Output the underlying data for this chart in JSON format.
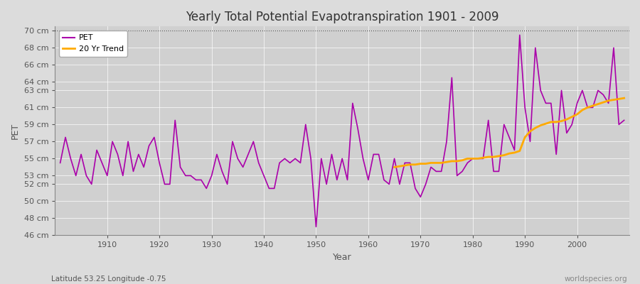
{
  "title": "Yearly Total Potential Evapotranspiration 1901 - 2009",
  "xlabel": "Year",
  "ylabel": "PET",
  "subtitle": "Latitude 53.25 Longitude -0.75",
  "watermark": "worldspecies.org",
  "ylim": [
    46,
    70.5
  ],
  "ytick_labels": [
    "46 cm",
    "48 cm",
    "50 cm",
    "52 cm",
    "53 cm",
    "55 cm",
    "57 cm",
    "59 cm",
    "61 cm",
    "63 cm",
    "64 cm",
    "66 cm",
    "68 cm",
    "70 cm"
  ],
  "ytick_values": [
    46,
    48,
    50,
    52,
    53,
    55,
    57,
    59,
    61,
    63,
    64,
    66,
    68,
    70
  ],
  "pet_color": "#aa00aa",
  "trend_color": "#ffaa00",
  "bg_color": "#dcdcdc",
  "plot_bg_color": "#d0d0d0",
  "years": [
    1901,
    1902,
    1903,
    1904,
    1905,
    1906,
    1907,
    1908,
    1909,
    1910,
    1911,
    1912,
    1913,
    1914,
    1915,
    1916,
    1917,
    1918,
    1919,
    1920,
    1921,
    1922,
    1923,
    1924,
    1925,
    1926,
    1927,
    1928,
    1929,
    1930,
    1931,
    1932,
    1933,
    1934,
    1935,
    1936,
    1937,
    1938,
    1939,
    1940,
    1941,
    1942,
    1943,
    1944,
    1945,
    1946,
    1947,
    1948,
    1949,
    1950,
    1951,
    1952,
    1953,
    1954,
    1955,
    1956,
    1957,
    1958,
    1959,
    1960,
    1961,
    1962,
    1963,
    1964,
    1965,
    1966,
    1967,
    1968,
    1969,
    1970,
    1971,
    1972,
    1973,
    1974,
    1975,
    1976,
    1977,
    1978,
    1979,
    1980,
    1981,
    1982,
    1983,
    1984,
    1985,
    1986,
    1987,
    1988,
    1989,
    1990,
    1991,
    1992,
    1993,
    1994,
    1995,
    1996,
    1997,
    1998,
    1999,
    2000,
    2001,
    2002,
    2003,
    2004,
    2005,
    2006,
    2007,
    2008,
    2009
  ],
  "pet_values": [
    54.5,
    57.5,
    55.0,
    53.0,
    55.5,
    53.0,
    52.0,
    56.0,
    54.5,
    53.0,
    57.0,
    55.5,
    53.0,
    57.0,
    53.5,
    55.5,
    54.0,
    56.5,
    57.5,
    54.5,
    52.0,
    52.0,
    59.5,
    54.0,
    53.0,
    53.0,
    52.5,
    52.5,
    51.5,
    53.0,
    55.5,
    53.5,
    52.0,
    57.0,
    55.0,
    54.0,
    55.5,
    57.0,
    54.5,
    53.0,
    51.5,
    51.5,
    54.5,
    55.0,
    54.5,
    55.0,
    54.5,
    59.0,
    55.0,
    47.0,
    55.0,
    52.0,
    55.5,
    52.5,
    55.0,
    52.5,
    61.5,
    58.5,
    55.0,
    52.5,
    55.5,
    55.5,
    52.5,
    52.0,
    55.0,
    52.0,
    54.5,
    54.5,
    51.5,
    50.5,
    52.0,
    54.0,
    53.5,
    53.5,
    57.0,
    64.5,
    53.0,
    53.5,
    54.5,
    55.0,
    55.0,
    55.0,
    59.5,
    53.5,
    53.5,
    59.0,
    57.5,
    56.0,
    69.5,
    61.0,
    57.0,
    68.0,
    63.0,
    61.5,
    61.5,
    55.5,
    63.0,
    58.0,
    59.0,
    61.5,
    63.0,
    61.0,
    61.0,
    63.0,
    62.5,
    61.5,
    68.0,
    59.0,
    59.5
  ],
  "trend_years": [
    1965,
    1966,
    1967,
    1968,
    1969,
    1970,
    1971,
    1972,
    1973,
    1974,
    1975,
    1976,
    1977,
    1978,
    1979,
    1980,
    1981,
    1982,
    1983,
    1984,
    1985,
    1986,
    1987,
    1988,
    1989,
    1990,
    1991,
    1992,
    1993,
    1994,
    1995,
    1996,
    1997,
    1998,
    1999,
    2000,
    2001,
    2002,
    2003,
    2004,
    2005,
    2006,
    2007,
    2008,
    2009
  ],
  "trend_values": [
    54.0,
    54.1,
    54.2,
    54.3,
    54.3,
    54.4,
    54.4,
    54.5,
    54.5,
    54.5,
    54.6,
    54.7,
    54.7,
    54.8,
    55.0,
    55.0,
    55.0,
    55.1,
    55.2,
    55.2,
    55.3,
    55.4,
    55.6,
    55.7,
    55.9,
    57.5,
    58.2,
    58.6,
    58.9,
    59.1,
    59.3,
    59.3,
    59.4,
    59.6,
    59.9,
    60.2,
    60.7,
    61.0,
    61.2,
    61.4,
    61.6,
    61.8,
    61.9,
    62.0,
    62.1
  ]
}
